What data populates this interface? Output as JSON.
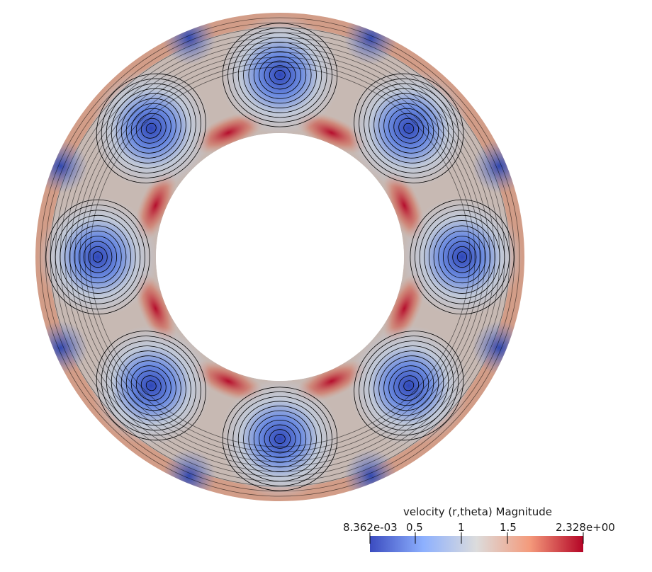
{
  "colorbar": {
    "title": "velocity (r,theta) Magnitude",
    "tick_labels": [
      "8.362e-03",
      "0.5",
      "1",
      "1.5",
      "2.328e+00"
    ],
    "tick_values": [
      0.008362,
      0.5,
      1,
      1.5,
      2.328
    ],
    "colors": {
      "low": "#3b4cc0",
      "mid": "#dcdcdc",
      "high": "#b40426"
    }
  },
  "scene": {
    "object": "annulus",
    "vortex_count": 8,
    "ring_color": "#bfc3cc",
    "streamline_color": "#000000"
  }
}
